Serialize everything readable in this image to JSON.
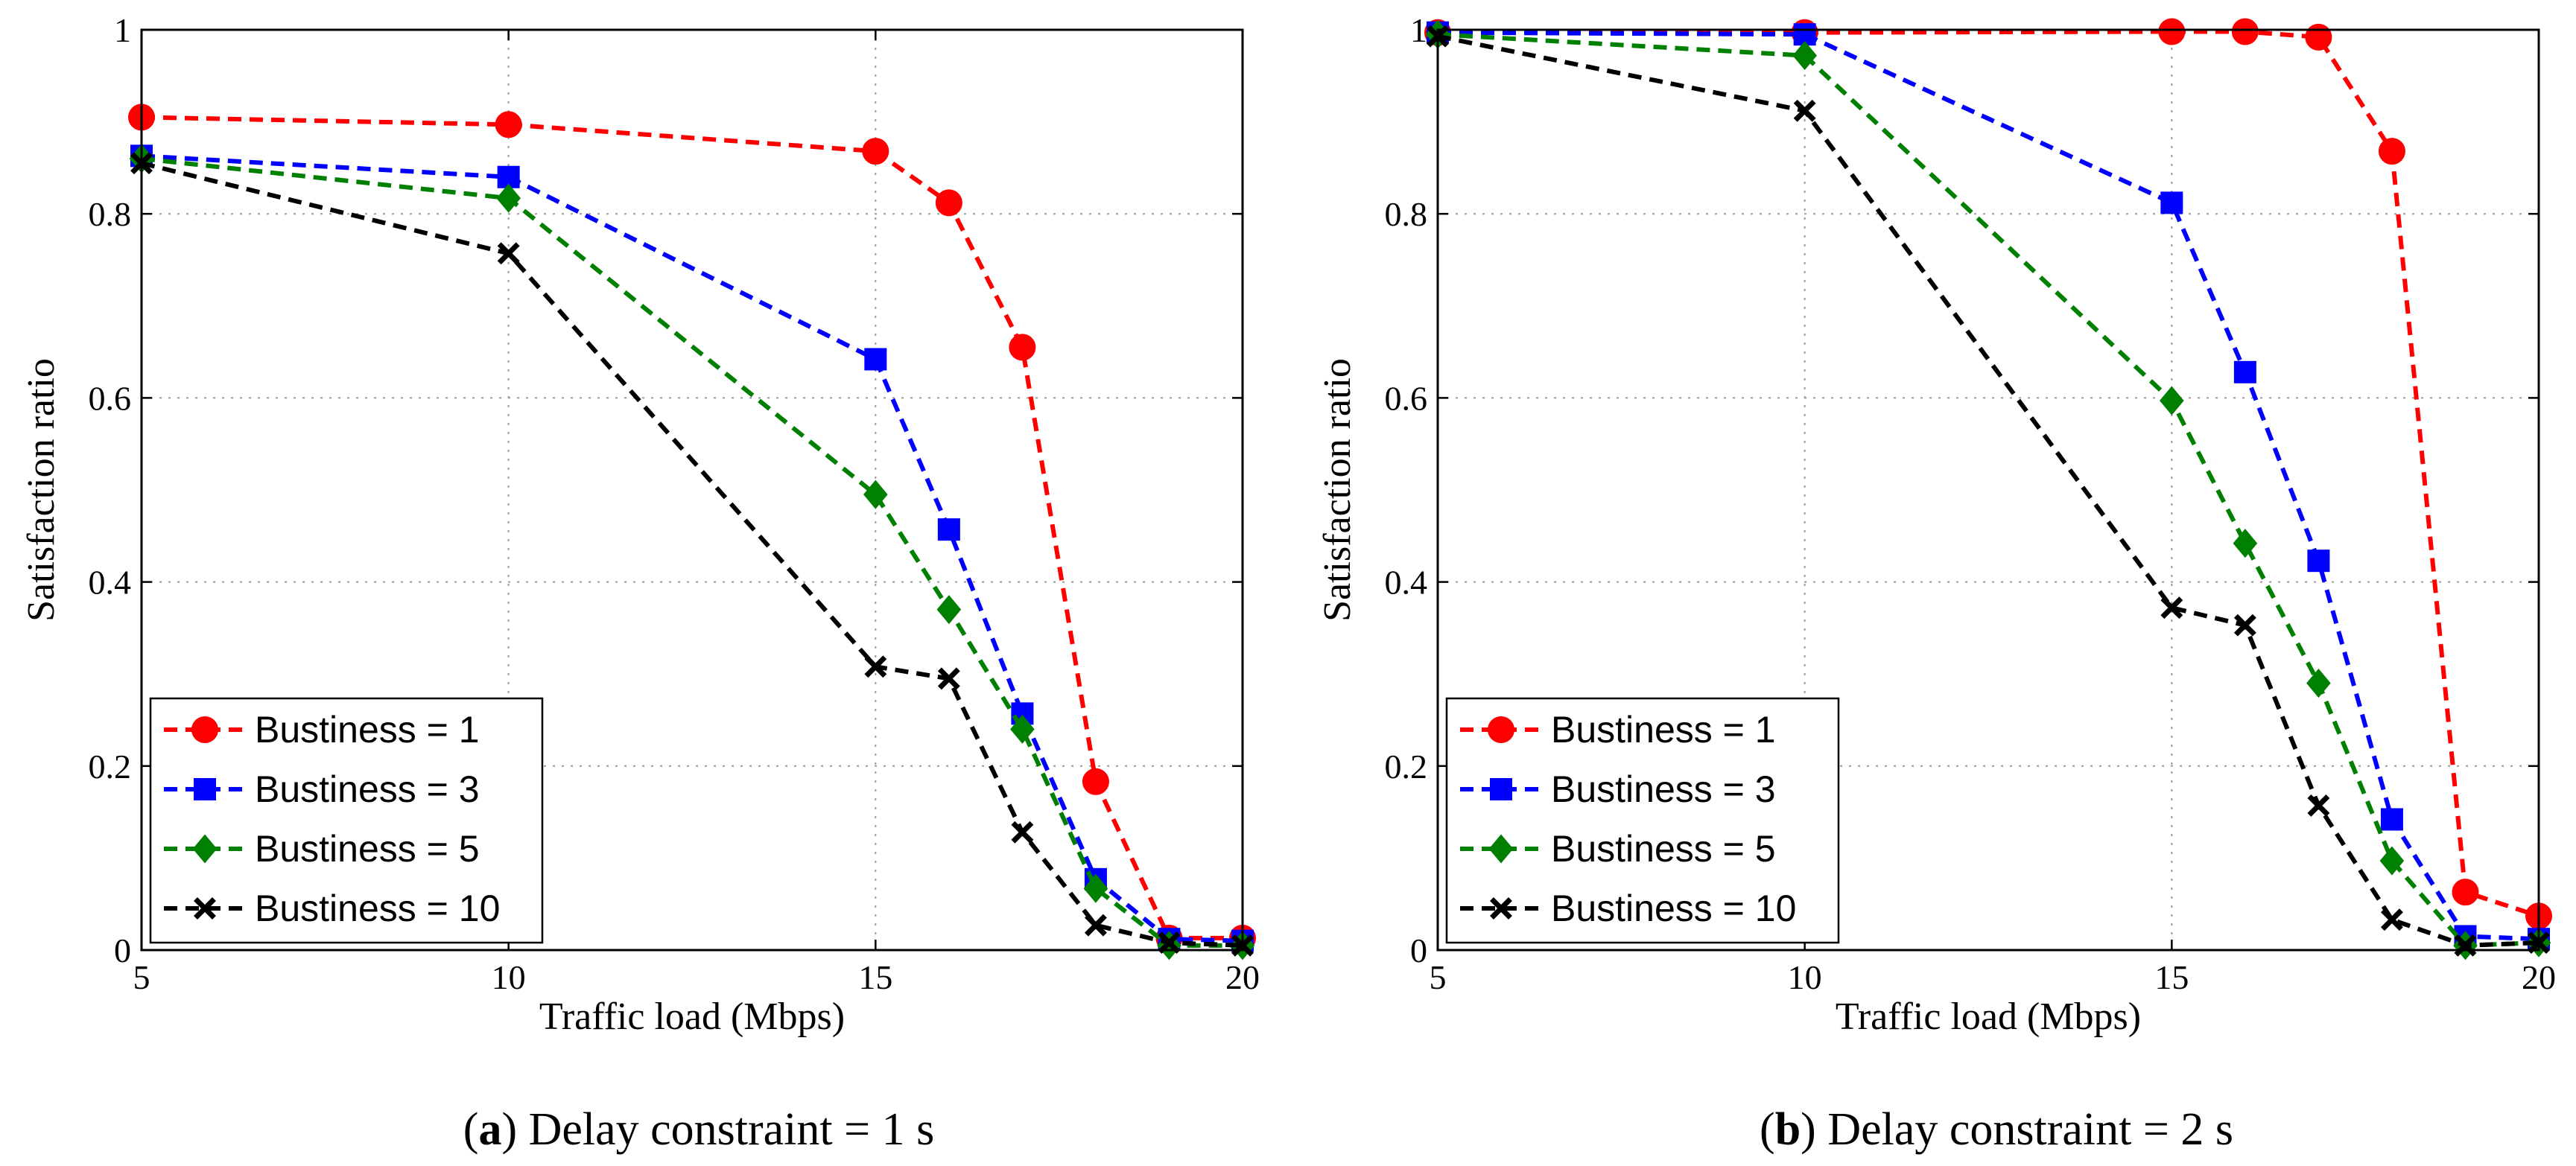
{
  "chart_data": [
    {
      "type": "line",
      "caption_tag": "a",
      "caption_text": "Delay constraint = 1 s",
      "xlabel": "Traffic load (Mbps)",
      "ylabel": "Satisfaction ratio",
      "xlim": [
        5,
        20
      ],
      "ylim": [
        0,
        1
      ],
      "xticks": [
        5,
        10,
        15,
        20
      ],
      "yticks": [
        0,
        0.2,
        0.4,
        0.6,
        0.8,
        1
      ],
      "ytick_labels": [
        "0",
        "0.2",
        "0.4",
        "0.6",
        "0.8",
        "1"
      ],
      "grid": true,
      "legend_position": "bottom-left",
      "x": [
        5,
        10,
        15,
        16,
        17,
        18,
        19,
        20
      ],
      "series": [
        {
          "name": "Bustiness = 1",
          "color": "#ff0000",
          "marker": "circle",
          "values": [
            0.905,
            0.897,
            0.868,
            0.812,
            0.655,
            0.183,
            0.013,
            0.013
          ]
        },
        {
          "name": "Bustiness = 3",
          "color": "#0000ff",
          "marker": "square",
          "values": [
            0.863,
            0.84,
            0.642,
            0.457,
            0.257,
            0.077,
            0.012,
            0.01
          ]
        },
        {
          "name": "Bustiness = 5",
          "color": "#008000",
          "marker": "diamond",
          "values": [
            0.86,
            0.817,
            0.495,
            0.37,
            0.24,
            0.067,
            0.005,
            0.005
          ]
        },
        {
          "name": "Bustiness = 10",
          "color": "#000000",
          "marker": "x",
          "values": [
            0.855,
            0.757,
            0.308,
            0.295,
            0.128,
            0.027,
            0.008,
            0.005
          ]
        }
      ]
    },
    {
      "type": "line",
      "caption_tag": "b",
      "caption_text": "Delay constraint = 2 s",
      "xlabel": "Traffic load (Mbps)",
      "ylabel": "Satisfaction ratio",
      "xlim": [
        5,
        20
      ],
      "ylim": [
        0,
        1
      ],
      "xticks": [
        5,
        10,
        15,
        20
      ],
      "yticks": [
        0,
        0.2,
        0.4,
        0.6,
        0.8,
        1
      ],
      "ytick_labels": [
        "0",
        "0.2",
        "0.4",
        "0.6",
        "0.8",
        "1"
      ],
      "grid": true,
      "legend_position": "bottom-left",
      "x": [
        5,
        10,
        15,
        16,
        17,
        18,
        19,
        20
      ],
      "series": [
        {
          "name": "Bustiness = 1",
          "color": "#ff0000",
          "marker": "circle",
          "values": [
            0.997,
            0.997,
            0.998,
            0.998,
            0.992,
            0.868,
            0.063,
            0.037
          ]
        },
        {
          "name": "Bustiness = 3",
          "color": "#0000ff",
          "marker": "square",
          "values": [
            0.997,
            0.995,
            0.812,
            0.628,
            0.423,
            0.142,
            0.015,
            0.012
          ]
        },
        {
          "name": "Bustiness = 5",
          "color": "#008000",
          "marker": "diamond",
          "values": [
            0.995,
            0.972,
            0.597,
            0.442,
            0.29,
            0.097,
            0.005,
            0.008
          ]
        },
        {
          "name": "Bustiness = 10",
          "color": "#000000",
          "marker": "x",
          "values": [
            0.993,
            0.912,
            0.372,
            0.353,
            0.157,
            0.033,
            0.005,
            0.008
          ]
        }
      ]
    }
  ]
}
